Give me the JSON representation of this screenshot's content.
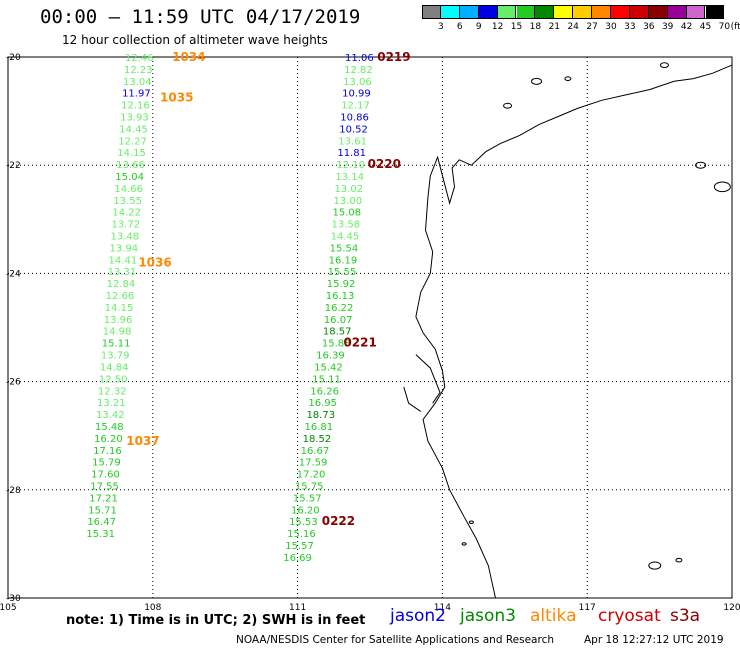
{
  "header": {
    "title": "00:00 – 11:59 UTC 04/17/2019",
    "subtitle": "12 hour collection of altimeter wave heights"
  },
  "legend": {
    "unit": "(ft)",
    "bins": [
      {
        "label": "3",
        "color": "#808080"
      },
      {
        "label": "6",
        "color": "#00ffff"
      },
      {
        "label": "9",
        "color": "#00b0ff"
      },
      {
        "label": "12",
        "color": "#0000e0"
      },
      {
        "label": "15",
        "color": "#66ee66"
      },
      {
        "label": "18",
        "color": "#22cc22"
      },
      {
        "label": "21",
        "color": "#008800"
      },
      {
        "label": "24",
        "color": "#ffff00"
      },
      {
        "label": "27",
        "color": "#ffcc00"
      },
      {
        "label": "30",
        "color": "#ff8800"
      },
      {
        "label": "33",
        "color": "#ff0000"
      },
      {
        "label": "36",
        "color": "#cc0000"
      },
      {
        "label": "39",
        "color": "#880000"
      },
      {
        "label": "42",
        "color": "#990099"
      },
      {
        "label": "45",
        "color": "#cc66cc"
      },
      {
        "label": "70",
        "color": "#000000"
      }
    ]
  },
  "map": {
    "lon_range": [
      105,
      120
    ],
    "lat_range": [
      -30,
      -20
    ],
    "lon_ticks": [
      "105",
      "108",
      "111",
      "114",
      "117",
      "120"
    ],
    "lat_ticks": [
      "-20",
      "-22",
      "-24",
      "-26",
      "-28",
      "-30"
    ],
    "colors": {
      "light": "#66ee66",
      "mid": "#22cc22",
      "dark": "#008800",
      "blue": "#0000e0",
      "orange": "#ff8800",
      "maroon": "#880000"
    }
  },
  "passes": [
    {
      "label": "1034",
      "label_color": "#ff8800",
      "label_lat": -20.0,
      "label_lon": 108.4,
      "points": [
        {
          "lon": 107.72,
          "lat": -20.0,
          "value": "12.46",
          "c": "light"
        },
        {
          "lon": 107.7,
          "lat": -20.22,
          "value": "12.23",
          "c": "light"
        },
        {
          "lon": 107.68,
          "lat": -20.44,
          "value": "13.04",
          "c": "light"
        },
        {
          "lon": 107.66,
          "lat": -20.66,
          "value": "11.97",
          "c": "blue"
        },
        {
          "lon": 107.64,
          "lat": -20.88,
          "value": "12.16",
          "c": "light"
        },
        {
          "lon": 107.62,
          "lat": -21.1,
          "value": "13.93",
          "c": "light"
        },
        {
          "lon": 107.6,
          "lat": -21.32,
          "value": "14.45",
          "c": "light"
        },
        {
          "lon": 107.58,
          "lat": -21.54,
          "value": "12.27",
          "c": "light"
        },
        {
          "lon": 107.56,
          "lat": -21.76,
          "value": "14.15",
          "c": "light"
        },
        {
          "lon": 107.54,
          "lat": -21.98,
          "value": "13.66",
          "c": "light"
        },
        {
          "lon": 107.52,
          "lat": -22.2,
          "value": "15.04",
          "c": "mid"
        },
        {
          "lon": 107.5,
          "lat": -22.42,
          "value": "14.66",
          "c": "light"
        },
        {
          "lon": 107.48,
          "lat": -22.64,
          "value": "13.55",
          "c": "light"
        },
        {
          "lon": 107.46,
          "lat": -22.86,
          "value": "14.22",
          "c": "light"
        },
        {
          "lon": 107.44,
          "lat": -23.08,
          "value": "13.72",
          "c": "light"
        },
        {
          "lon": 107.42,
          "lat": -23.3,
          "value": "13.48",
          "c": "light"
        },
        {
          "lon": 107.4,
          "lat": -23.52,
          "value": "13.94",
          "c": "light"
        },
        {
          "lon": 107.38,
          "lat": -23.74,
          "value": "14.41",
          "c": "light"
        },
        {
          "lon": 107.36,
          "lat": -23.96,
          "value": "13.31",
          "c": "light"
        },
        {
          "lon": 107.34,
          "lat": -24.18,
          "value": "12.84",
          "c": "light"
        },
        {
          "lon": 107.32,
          "lat": -24.4,
          "value": "12.66",
          "c": "light"
        },
        {
          "lon": 107.3,
          "lat": -24.62,
          "value": "14.15",
          "c": "light"
        },
        {
          "lon": 107.28,
          "lat": -24.84,
          "value": "13.96",
          "c": "light"
        },
        {
          "lon": 107.26,
          "lat": -25.06,
          "value": "14.98",
          "c": "light"
        },
        {
          "lon": 107.24,
          "lat": -25.28,
          "value": "15.11",
          "c": "mid"
        },
        {
          "lon": 107.22,
          "lat": -25.5,
          "value": "13.79",
          "c": "light"
        },
        {
          "lon": 107.2,
          "lat": -25.72,
          "value": "14.84",
          "c": "light"
        },
        {
          "lon": 107.18,
          "lat": -25.94,
          "value": "12.50",
          "c": "light"
        },
        {
          "lon": 107.16,
          "lat": -26.16,
          "value": "12.32",
          "c": "light"
        },
        {
          "lon": 107.14,
          "lat": -26.38,
          "value": "13.21",
          "c": "light"
        },
        {
          "lon": 107.12,
          "lat": -26.6,
          "value": "13.42",
          "c": "light"
        },
        {
          "lon": 107.1,
          "lat": -26.82,
          "value": "15.48",
          "c": "mid"
        },
        {
          "lon": 107.08,
          "lat": -27.04,
          "value": "16.20",
          "c": "mid"
        },
        {
          "lon": 107.06,
          "lat": -27.26,
          "value": "17.16",
          "c": "mid"
        },
        {
          "lon": 107.04,
          "lat": -27.48,
          "value": "15.79",
          "c": "mid"
        },
        {
          "lon": 107.02,
          "lat": -27.7,
          "value": "17.60",
          "c": "mid"
        },
        {
          "lon": 107.0,
          "lat": -27.92,
          "value": "17.55",
          "c": "mid"
        },
        {
          "lon": 106.98,
          "lat": -28.14,
          "value": "17.21",
          "c": "mid"
        },
        {
          "lon": 106.96,
          "lat": -28.36,
          "value": "15.71",
          "c": "mid"
        },
        {
          "lon": 106.94,
          "lat": -28.58,
          "value": "16.47",
          "c": "mid"
        },
        {
          "lon": 106.92,
          "lat": -28.8,
          "value": "15.31",
          "c": "mid"
        }
      ]
    },
    {
      "label": "1035",
      "label_color": "#ff8800",
      "label_lat": -20.75,
      "label_lon": 108.15,
      "points": []
    },
    {
      "label": "1036",
      "label_color": "#ff8800",
      "label_lat": -23.8,
      "label_lon": 107.7,
      "points": []
    },
    {
      "label": "1037",
      "label_color": "#ff8800",
      "label_lat": -27.1,
      "label_lon": 107.45,
      "points": []
    },
    {
      "label": "0219",
      "label_color": "#880000",
      "label_lat": -20.0,
      "label_lon": 112.65,
      "points": [
        {
          "lon": 112.28,
          "lat": -20.0,
          "value": "11.06",
          "c": "blue"
        },
        {
          "lon": 112.26,
          "lat": -20.22,
          "value": "12.82",
          "c": "light"
        },
        {
          "lon": 112.24,
          "lat": -20.44,
          "value": "13.06",
          "c": "light"
        },
        {
          "lon": 112.22,
          "lat": -20.66,
          "value": "10.99",
          "c": "blue"
        },
        {
          "lon": 112.2,
          "lat": -20.88,
          "value": "12.17",
          "c": "light"
        },
        {
          "lon": 112.18,
          "lat": -21.1,
          "value": "10.86",
          "c": "blue"
        },
        {
          "lon": 112.16,
          "lat": -21.32,
          "value": "10.52",
          "c": "blue"
        },
        {
          "lon": 112.14,
          "lat": -21.54,
          "value": "13.61",
          "c": "light"
        },
        {
          "lon": 112.12,
          "lat": -21.76,
          "value": "11.81",
          "c": "blue"
        },
        {
          "lon": 112.1,
          "lat": -21.98,
          "value": "12.10",
          "c": "light"
        }
      ]
    },
    {
      "label": "0220",
      "label_color": "#880000",
      "label_lat": -21.98,
      "label_lon": 112.45,
      "points": [
        {
          "lon": 112.08,
          "lat": -22.2,
          "value": "13.14",
          "c": "light"
        },
        {
          "lon": 112.06,
          "lat": -22.42,
          "value": "13.02",
          "c": "light"
        },
        {
          "lon": 112.04,
          "lat": -22.64,
          "value": "13.00",
          "c": "light"
        },
        {
          "lon": 112.02,
          "lat": -22.86,
          "value": "15.08",
          "c": "mid"
        },
        {
          "lon": 112.0,
          "lat": -23.08,
          "value": "13.58",
          "c": "light"
        },
        {
          "lon": 111.98,
          "lat": -23.3,
          "value": "14.45",
          "c": "light"
        },
        {
          "lon": 111.96,
          "lat": -23.52,
          "value": "15.54",
          "c": "mid"
        },
        {
          "lon": 111.94,
          "lat": -23.74,
          "value": "16.19",
          "c": "mid"
        },
        {
          "lon": 111.92,
          "lat": -23.96,
          "value": "15.55",
          "c": "mid"
        },
        {
          "lon": 111.9,
          "lat": -24.18,
          "value": "15.92",
          "c": "mid"
        },
        {
          "lon": 111.88,
          "lat": -24.4,
          "value": "16.13",
          "c": "mid"
        },
        {
          "lon": 111.86,
          "lat": -24.62,
          "value": "16.22",
          "c": "mid"
        },
        {
          "lon": 111.84,
          "lat": -24.84,
          "value": "16.07",
          "c": "mid"
        },
        {
          "lon": 111.82,
          "lat": -25.06,
          "value": "18.57",
          "c": "dark"
        },
        {
          "lon": 111.8,
          "lat": -25.28,
          "value": "15.83",
          "c": "mid"
        }
      ]
    },
    {
      "label": "0221",
      "label_color": "#880000",
      "label_lat": -25.28,
      "label_lon": 111.95,
      "points": [
        {
          "lon": 111.68,
          "lat": -25.5,
          "value": "16.39",
          "c": "mid"
        },
        {
          "lon": 111.64,
          "lat": -25.72,
          "value": "15.42",
          "c": "mid"
        },
        {
          "lon": 111.6,
          "lat": -25.94,
          "value": "15.11",
          "c": "mid"
        },
        {
          "lon": 111.56,
          "lat": -26.16,
          "value": "16.26",
          "c": "mid"
        },
        {
          "lon": 111.52,
          "lat": -26.38,
          "value": "16.95",
          "c": "mid"
        },
        {
          "lon": 111.48,
          "lat": -26.6,
          "value": "18.73",
          "c": "dark"
        },
        {
          "lon": 111.44,
          "lat": -26.82,
          "value": "16.81",
          "c": "mid"
        },
        {
          "lon": 111.4,
          "lat": -27.04,
          "value": "18.52",
          "c": "dark"
        },
        {
          "lon": 111.36,
          "lat": -27.26,
          "value": "16.67",
          "c": "mid"
        },
        {
          "lon": 111.32,
          "lat": -27.48,
          "value": "17.59",
          "c": "mid"
        },
        {
          "lon": 111.28,
          "lat": -27.7,
          "value": "17.20",
          "c": "mid"
        },
        {
          "lon": 111.24,
          "lat": -27.92,
          "value": "15.75",
          "c": "mid"
        },
        {
          "lon": 111.2,
          "lat": -28.14,
          "value": "15.57",
          "c": "mid"
        },
        {
          "lon": 111.16,
          "lat": -28.36,
          "value": "16.20",
          "c": "mid"
        },
        {
          "lon": 111.12,
          "lat": -28.58,
          "value": "15.53",
          "c": "mid"
        }
      ]
    },
    {
      "label": "0222",
      "label_color": "#880000",
      "label_lat": -28.58,
      "label_lon": 111.5,
      "points": [
        {
          "lon": 111.08,
          "lat": -28.8,
          "value": "15.16",
          "c": "mid"
        },
        {
          "lon": 111.04,
          "lat": -29.02,
          "value": "15.57",
          "c": "mid"
        },
        {
          "lon": 111.0,
          "lat": -29.24,
          "value": "16.69",
          "c": "mid"
        }
      ]
    }
  ],
  "footer": {
    "note": "note: 1) Time is in UTC; 2) SWH is in feet",
    "satellites": [
      {
        "name": "jason2",
        "color": "#0000e0"
      },
      {
        "name": "jason3",
        "color": "#008800"
      },
      {
        "name": "altika",
        "color": "#ff8800"
      },
      {
        "name": "cryosat",
        "color": "#cc0000"
      },
      {
        "name": "s3a",
        "color": "#880000"
      }
    ],
    "credit": "NOAA/NESDIS Center for Satellite Applications and Research",
    "timestamp": "Apr 18 12:27:12 UTC 2019"
  }
}
